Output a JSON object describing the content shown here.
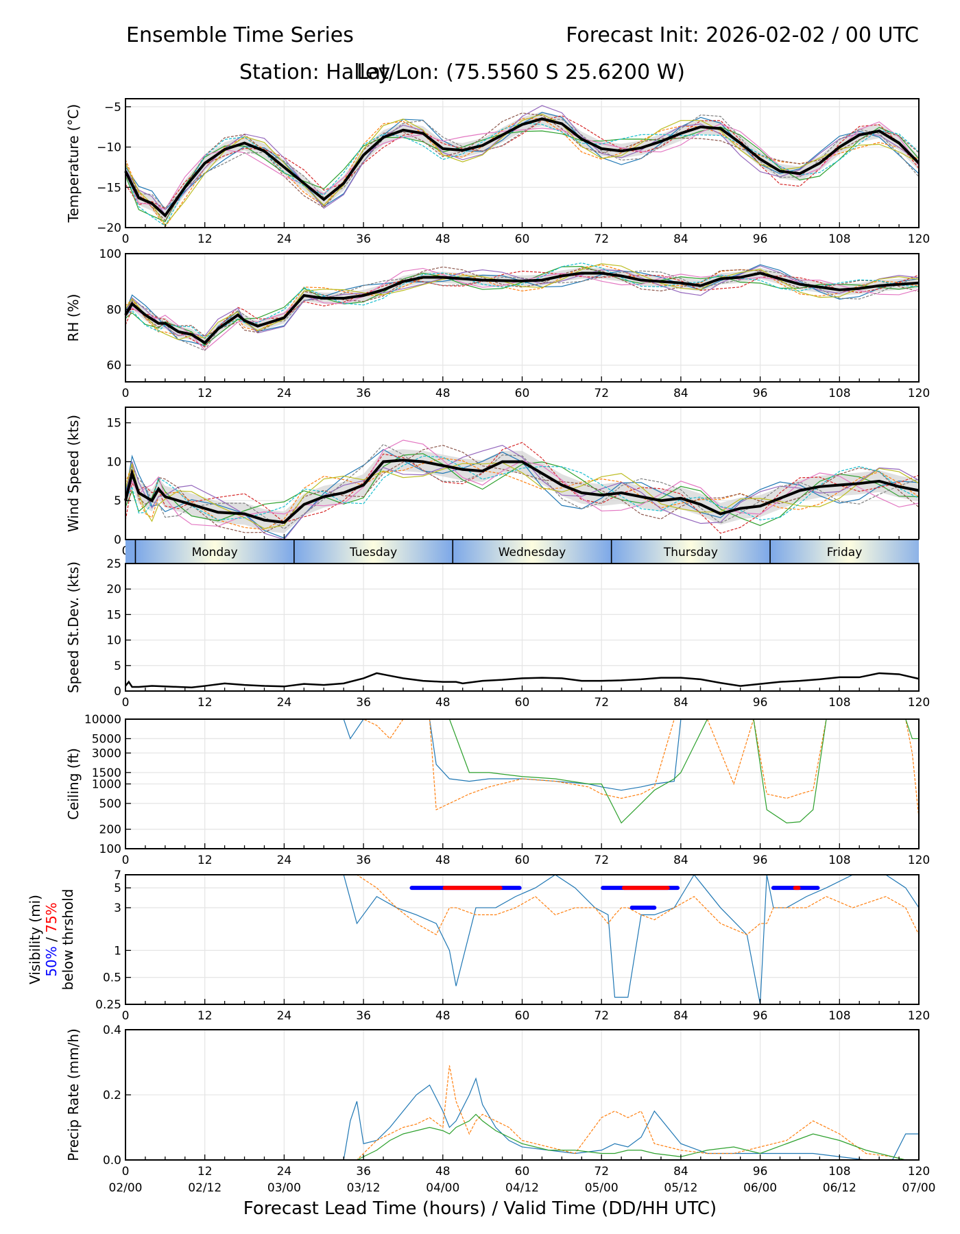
{
  "header": {
    "title": "Ensemble Time Series",
    "forecast_init": "Forecast Init: 2026-02-02 / 00 UTC",
    "station": "Station: Halley",
    "latlon": "Lat/Lon: (75.5560 S 25.6200 W)"
  },
  "chart_data": [
    {
      "id": "temperature",
      "type": "line",
      "ylabel": "Temperature (°C)",
      "ylim": [
        -20,
        -4
      ],
      "yscale": "linear",
      "yticks": [
        -20,
        -15,
        -10,
        -5
      ],
      "ytick_labels": [
        "−20",
        "−15",
        "−10",
        "−5"
      ],
      "grid": true,
      "x": [
        0,
        2,
        4,
        6,
        9,
        12,
        15,
        18,
        21,
        24,
        27,
        30,
        33,
        36,
        39,
        42,
        45,
        48,
        51,
        54,
        57,
        60,
        63,
        66,
        69,
        72,
        75,
        78,
        81,
        84,
        87,
        90,
        93,
        96,
        99,
        102,
        105,
        108,
        111,
        114,
        117,
        120
      ],
      "series": [
        {
          "name": "ensemble-mean",
          "values": [
            -13,
            -16.3,
            -17,
            -18.5,
            -15,
            -12,
            -10.3,
            -9.5,
            -10.5,
            -12.5,
            -14.5,
            -16.5,
            -14.5,
            -11,
            -8.8,
            -7.9,
            -8.3,
            -10.2,
            -10.4,
            -9.8,
            -8.5,
            -7.2,
            -6.5,
            -7.1,
            -9,
            -10.2,
            -10.5,
            -10.1,
            -9.3,
            -8.3,
            -7.5,
            -7.7,
            -9.5,
            -11.5,
            -13,
            -13.3,
            -12,
            -10,
            -8.5,
            -8,
            -9.5,
            -12
          ]
        }
      ],
      "spread": 0.9
    },
    {
      "id": "rh",
      "type": "line",
      "ylabel": "RH (%)",
      "ylim": [
        54,
        100
      ],
      "yscale": "linear",
      "yticks": [
        60,
        80,
        100
      ],
      "ytick_labels": [
        "60",
        "80",
        "100"
      ],
      "grid": true,
      "x": [
        0,
        1,
        3,
        5,
        6,
        8,
        10,
        12,
        14,
        17,
        18,
        20,
        24,
        27,
        30,
        33,
        36,
        39,
        42,
        45,
        48,
        51,
        54,
        57,
        60,
        63,
        66,
        69,
        72,
        75,
        78,
        81,
        84,
        87,
        90,
        93,
        96,
        99,
        102,
        105,
        108,
        111,
        114,
        117,
        120
      ],
      "series": [
        {
          "name": "ensemble-mean",
          "values": [
            78,
            82,
            78,
            75,
            75,
            72,
            71,
            68,
            73,
            78,
            76,
            74,
            77,
            85,
            84,
            84,
            85,
            87,
            90,
            91.5,
            91.5,
            91,
            90.5,
            90.3,
            90.2,
            90.5,
            92,
            93,
            93,
            92,
            90.5,
            90,
            89.5,
            88.5,
            91,
            91.5,
            93,
            91,
            89,
            88,
            87,
            87.5,
            88.5,
            89,
            89.5
          ]
        }
      ],
      "spread": 2.0
    },
    {
      "id": "wind-speed",
      "type": "line",
      "ylabel": "Wind Speed (kts)",
      "ylim": [
        0,
        17
      ],
      "yscale": "linear",
      "yticks": [
        0,
        5,
        10,
        15
      ],
      "ytick_labels": [
        "0",
        "5",
        "10",
        "15"
      ],
      "grid": true,
      "x": [
        0,
        1,
        2,
        3,
        4,
        5,
        6,
        8,
        10,
        14,
        18,
        21,
        24,
        27,
        30,
        33,
        36,
        39,
        42,
        45,
        48,
        51,
        54,
        57,
        60,
        63,
        66,
        69,
        72,
        75,
        78,
        81,
        84,
        87,
        90,
        93,
        96,
        99,
        102,
        105,
        108,
        111,
        114,
        117,
        120
      ],
      "series": [
        {
          "name": "ensemble-mean",
          "values": [
            5,
            8.5,
            6,
            5.5,
            5,
            6.5,
            5.5,
            5,
            4.5,
            3.5,
            3.3,
            2.5,
            2.2,
            4.5,
            5.5,
            6,
            7,
            10,
            10.2,
            10,
            9.5,
            9,
            8.8,
            10,
            10,
            8.5,
            7,
            6,
            5.7,
            6,
            5.5,
            5,
            5.3,
            4.5,
            3.3,
            4,
            4.3,
            5.3,
            6.3,
            6.8,
            7,
            7.2,
            7.5,
            6.8,
            6.3
          ]
        }
      ],
      "spread": 1.4
    },
    {
      "id": "day-band",
      "type": "table",
      "days": [
        "Monday",
        "Tuesday",
        "Wednesday",
        "Thursday",
        "Friday"
      ],
      "day_start_hours": [
        1.5,
        25.5,
        49.5,
        73.5,
        97.5
      ],
      "colors": {
        "edge": "#7da8e8",
        "center": "#fdfde0"
      }
    },
    {
      "id": "speed-stdev",
      "type": "line",
      "ylabel": "Speed St.Dev. (kts)",
      "ylim": [
        0,
        25
      ],
      "yscale": "linear",
      "yticks": [
        0,
        5,
        10,
        15,
        20,
        25
      ],
      "ytick_labels": [
        "0",
        "5",
        "10",
        "15",
        "20",
        "25"
      ],
      "grid": true,
      "x": [
        0,
        0.5,
        1,
        2,
        4,
        6,
        8,
        10,
        12,
        15,
        18,
        21,
        24,
        27,
        30,
        33,
        36,
        38,
        40,
        42,
        45,
        48,
        50,
        51,
        54,
        57,
        60,
        63,
        66,
        69,
        72,
        75,
        78,
        81,
        84,
        87,
        90,
        93,
        96,
        99,
        102,
        105,
        108,
        111,
        114,
        117,
        120
      ],
      "series": [
        {
          "name": "speed-stdev",
          "values": [
            1,
            1.8,
            0.8,
            0.8,
            1.0,
            0.9,
            0.8,
            0.7,
            1.0,
            1.5,
            1.2,
            1.0,
            0.9,
            1.4,
            1.2,
            1.5,
            2.5,
            3.5,
            3.0,
            2.5,
            2.0,
            1.8,
            1.8,
            1.5,
            2.0,
            2.2,
            2.5,
            2.6,
            2.5,
            2.0,
            2.0,
            2.1,
            2.3,
            2.6,
            2.6,
            2.3,
            1.6,
            1.0,
            1.4,
            1.8,
            2.0,
            2.3,
            2.7,
            2.7,
            3.5,
            3.3,
            2.4
          ]
        }
      ]
    },
    {
      "id": "ceiling",
      "type": "line",
      "ylabel": "Ceiling (ft)",
      "ylim": [
        100,
        10000
      ],
      "yscale": "log",
      "yticks": [
        100,
        200,
        500,
        1000,
        1500,
        3000,
        5000,
        10000
      ],
      "ytick_labels": [
        "100",
        "200",
        "500",
        "1000",
        "1500",
        "3000",
        "5000",
        "10000"
      ],
      "grid": true,
      "x": [
        33,
        34,
        36,
        38,
        40,
        42,
        46,
        47,
        49,
        52,
        55,
        60,
        65,
        70,
        72,
        75,
        78,
        80,
        83,
        84,
        88,
        92,
        95,
        97,
        100,
        102,
        104,
        106,
        118,
        119,
        120
      ],
      "series": [
        {
          "name": "member-a",
          "values": [
            10000,
            5000,
            10000,
            10000,
            10000,
            10000,
            10000,
            2000,
            1200,
            1100,
            1200,
            1200,
            1100,
            1000,
            900,
            800,
            900,
            1000,
            1100,
            10000,
            10000,
            10000,
            10000,
            10000,
            10000,
            10000,
            10000,
            10000,
            10000,
            10000,
            10000
          ]
        },
        {
          "name": "member-b",
          "values": [
            10000,
            10000,
            10000,
            8000,
            5000,
            10000,
            10000,
            400,
            500,
            700,
            900,
            1200,
            1100,
            900,
            700,
            600,
            700,
            900,
            10000,
            10000,
            10000,
            1000,
            10000,
            700,
            600,
            700,
            800,
            10000,
            10000,
            3000,
            300
          ]
        },
        {
          "name": "member-c",
          "values": [
            10000,
            10000,
            10000,
            10000,
            10000,
            10000,
            10000,
            10000,
            10000,
            1500,
            1500,
            1300,
            1200,
            1000,
            1000,
            250,
            500,
            800,
            1200,
            1500,
            10000,
            10000,
            10000,
            400,
            250,
            260,
            400,
            10000,
            10000,
            5000,
            5000
          ]
        }
      ]
    },
    {
      "id": "visibility",
      "type": "line",
      "ylabel": "Visibility (mi)",
      "ylabel_lines": [
        {
          "text": "50%",
          "color": "#0000ff"
        },
        {
          "text": " / ",
          "color": "#000000"
        },
        {
          "text": "75%",
          "color": "#ff0000"
        }
      ],
      "ylabel_line3": "below thrshold",
      "ylim": [
        0.25,
        7
      ],
      "yscale": "log",
      "yticks": [
        0.25,
        0.5,
        1,
        3,
        5,
        7
      ],
      "ytick_labels": [
        "0.25",
        "0.5",
        "1",
        "3",
        "5",
        "7"
      ],
      "grid": true,
      "x": [
        33,
        35,
        38,
        41,
        44,
        47,
        49,
        50,
        53,
        56,
        59,
        62,
        65,
        68,
        71,
        73,
        74,
        75,
        76,
        78,
        80,
        83,
        86,
        90,
        94,
        96,
        97,
        98,
        100,
        103,
        106,
        110,
        115,
        118,
        120
      ],
      "series": [
        {
          "name": "member-a",
          "values": [
            7,
            2,
            4,
            3,
            2.5,
            2,
            1,
            0.4,
            3,
            3,
            4,
            5,
            7,
            5,
            3,
            2.5,
            0.3,
            0.3,
            0.3,
            2.5,
            2.5,
            3,
            7,
            3,
            1.5,
            0.25,
            7,
            3,
            3,
            4,
            5,
            7,
            7,
            5,
            3
          ]
        },
        {
          "name": "member-b",
          "values": [
            7,
            7,
            5,
            3,
            2,
            1.5,
            3,
            3,
            2.5,
            2.5,
            3,
            4,
            2.5,
            3,
            3,
            2,
            2.5,
            3,
            3,
            2.5,
            2.2,
            3,
            4,
            2,
            1.5,
            2,
            2,
            3,
            3,
            3,
            4,
            3,
            4,
            3,
            1.5
          ]
        }
      ],
      "threshold_bars": [
        {
          "pct": "50%",
          "color": "#0000ff",
          "level_mi": 5,
          "start_h": 43.3,
          "end_h": 59.6
        },
        {
          "pct": "75%",
          "color": "#ff0000",
          "level_mi": 5,
          "start_h": 48.3,
          "end_h": 56.7
        },
        {
          "pct": "50%",
          "color": "#0000ff",
          "level_mi": 5,
          "start_h": 72.2,
          "end_h": 83.5
        },
        {
          "pct": "75%",
          "color": "#ff0000",
          "level_mi": 5,
          "start_h": 75.4,
          "end_h": 82.0
        },
        {
          "pct": "50%",
          "color": "#0000ff",
          "level_mi": 3,
          "start_h": 76.6,
          "end_h": 80.0
        },
        {
          "pct": "50%",
          "color": "#0000ff",
          "level_mi": 5,
          "start_h": 98.0,
          "end_h": 104.7
        },
        {
          "pct": "75%",
          "color": "#ff0000",
          "level_mi": 5,
          "start_h": 101.3,
          "end_h": 101.8
        }
      ]
    },
    {
      "id": "precip",
      "type": "line",
      "ylabel": "Precip Rate (mm/h)",
      "ylim": [
        0,
        0.4
      ],
      "yscale": "linear",
      "yticks": [
        0,
        0.2,
        0.4
      ],
      "ytick_labels": [
        "0.0",
        "0.2",
        "0.4"
      ],
      "grid": true,
      "x": [
        0,
        30,
        33,
        34,
        35,
        36,
        38,
        40,
        42,
        44,
        46,
        48,
        49,
        50,
        52,
        53,
        54,
        56,
        58,
        60,
        64,
        68,
        72,
        74,
        76,
        78,
        80,
        84,
        88,
        92,
        96,
        100,
        104,
        108,
        112,
        116,
        118,
        120
      ],
      "series": [
        {
          "name": "member-a",
          "values": [
            0,
            0,
            0,
            0.12,
            0.18,
            0.05,
            0.06,
            0.1,
            0.15,
            0.2,
            0.23,
            0.15,
            0.1,
            0.12,
            0.2,
            0.25,
            0.17,
            0.1,
            0.06,
            0.04,
            0.03,
            0.02,
            0.03,
            0.05,
            0.04,
            0.07,
            0.15,
            0.05,
            0.02,
            0.02,
            0.02,
            0.02,
            0.02,
            0.01,
            0,
            0,
            0.08,
            0.08
          ]
        },
        {
          "name": "member-b",
          "values": [
            0,
            0,
            0,
            0,
            0,
            0.02,
            0.06,
            0.08,
            0.1,
            0.11,
            0.13,
            0.1,
            0.29,
            0.18,
            0.08,
            0.12,
            0.14,
            0.12,
            0.1,
            0.06,
            0.04,
            0.02,
            0.13,
            0.15,
            0.13,
            0.15,
            0.05,
            0.03,
            0.02,
            0.02,
            0.04,
            0.06,
            0.12,
            0.08,
            0.02,
            0.01,
            0,
            0
          ]
        },
        {
          "name": "member-c",
          "values": [
            0,
            0,
            0,
            0,
            0,
            0.01,
            0.03,
            0.06,
            0.08,
            0.09,
            0.1,
            0.09,
            0.08,
            0.1,
            0.12,
            0.14,
            0.12,
            0.09,
            0.07,
            0.05,
            0.03,
            0.03,
            0.02,
            0.02,
            0.03,
            0.03,
            0.02,
            0.01,
            0.03,
            0.04,
            0.02,
            0.05,
            0.08,
            0.06,
            0.03,
            0.01,
            0,
            0
          ]
        }
      ]
    }
  ],
  "x_axis": {
    "xlim": [
      0,
      120
    ],
    "ticks": [
      0,
      12,
      24,
      36,
      48,
      60,
      72,
      84,
      96,
      108,
      120
    ],
    "tick_labels": [
      "0",
      "12",
      "24",
      "36",
      "48",
      "60",
      "72",
      "84",
      "96",
      "108",
      "120"
    ],
    "valid_time_labels": [
      "02/00",
      "02/12",
      "03/00",
      "03/12",
      "04/00",
      "04/12",
      "05/00",
      "05/12",
      "06/00",
      "06/12",
      "07/00"
    ],
    "xlabel": "Forecast Lead Time (hours) / Valid Time (DD/HH UTC)"
  },
  "colors": {
    "member_palette": [
      "#1f77b4",
      "#ff7f0e",
      "#2ca02c",
      "#d62728",
      "#9467bd",
      "#8c564b",
      "#e377c2",
      "#7f7f7f",
      "#bcbd22",
      "#17becf"
    ],
    "mean_line": "#000000",
    "spread_fill": "#d3d3d3",
    "grid": "#e6e6e6"
  }
}
